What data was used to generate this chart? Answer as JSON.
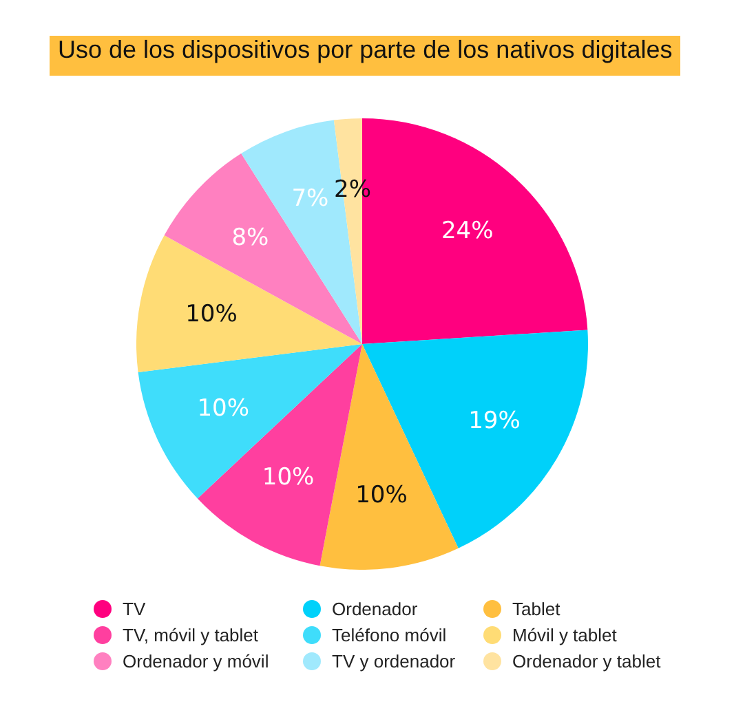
{
  "chart_data": {
    "type": "pie",
    "title": "Uso de los dispositivos por parte de los nativos digitales",
    "categories": [
      "TV",
      "Ordenador",
      "Tablet",
      "TV, móvil y tablet",
      "Teléfono móvil",
      "Móvil y tablet",
      "Ordenador y móvil",
      "TV y ordenador",
      "Ordenador y tablet"
    ],
    "values": [
      24,
      19,
      10,
      10,
      10,
      10,
      8,
      7,
      2
    ],
    "colors": [
      "#ff007f",
      "#00d1fa",
      "#ffbf3f",
      "#ff3f9f",
      "#3fddfb",
      "#ffdc75",
      "#ff80c0",
      "#a0e9fd",
      "#ffe3a0"
    ],
    "value_labels": [
      "24%",
      "19%",
      "10%",
      "10%",
      "10%",
      "10%",
      "8%",
      "7%",
      "2%"
    ],
    "legend": "bottom"
  }
}
